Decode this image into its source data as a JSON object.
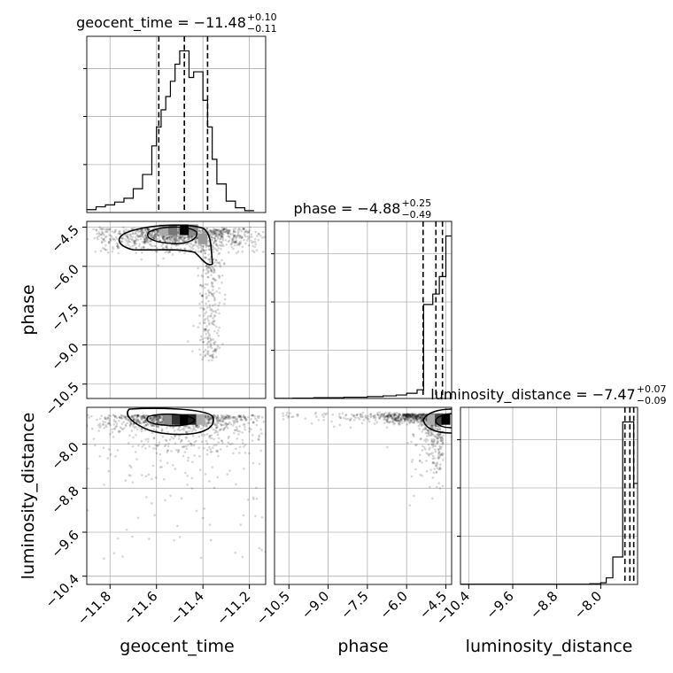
{
  "chart_data": {
    "type": "corner",
    "parameters": [
      "geocent_time",
      "phase",
      "luminosity_distance"
    ],
    "axis_labels": {
      "geocent_time": "geocent_time",
      "phase": "phase",
      "luminosity_distance": "luminosity_distance"
    },
    "titles": [
      {
        "param": "geocent_time",
        "prefix": "geocent_time = ",
        "median": "−11.48",
        "plus": "+0.10",
        "minus": "−0.11"
      },
      {
        "param": "phase",
        "prefix": "phase = ",
        "median": "−4.88",
        "plus": "+0.25",
        "minus": "−0.49"
      },
      {
        "param": "luminosity_distance",
        "prefix": "luminosity_distance = ",
        "median": "−7.47",
        "plus": "+0.07",
        "minus": "−0.09"
      }
    ],
    "ranges": {
      "geocent_time": [
        -11.9,
        -11.13
      ],
      "phase": [
        -11.05,
        -4.28
      ],
      "luminosity_distance": [
        -10.55,
        -7.33
      ]
    },
    "ticks": {
      "geocent_time": {
        "values": [
          -11.8,
          -11.6,
          -11.4,
          -11.2
        ],
        "labels": [
          "−11.8",
          "−11.6",
          "−11.4",
          "−11.2"
        ]
      },
      "phase": {
        "values": [
          -10.5,
          -9.0,
          -7.5,
          -6.0,
          -4.5
        ],
        "labels": [
          "−10.5",
          "−9.0",
          "−7.5",
          "−6.0",
          "−4.5"
        ]
      },
      "luminosity_distance": {
        "values": [
          -10.4,
          -9.6,
          -8.8,
          -8.0
        ],
        "labels": [
          "−10.4",
          "−9.6",
          "−8.8",
          "−8.0"
        ]
      }
    },
    "quantiles": {
      "geocent_time": [
        -11.59,
        -11.48,
        -11.38
      ],
      "phase": [
        -5.37,
        -4.88,
        -4.63
      ],
      "luminosity_distance": [
        -7.56,
        -7.47,
        -7.4
      ]
    },
    "histograms": {
      "geocent_time": {
        "edges": [
          -11.9,
          -11.86,
          -11.82,
          -11.78,
          -11.74,
          -11.7,
          -11.66,
          -11.62,
          -11.6,
          -11.58,
          -11.56,
          -11.54,
          -11.52,
          -11.5,
          -11.48,
          -11.46,
          -11.44,
          -11.42,
          -11.4,
          -11.38,
          -11.36,
          -11.34,
          -11.3,
          -11.26,
          -11.22,
          -11.18
        ],
        "counts": [
          0.03,
          0.06,
          0.08,
          0.11,
          0.15,
          0.25,
          0.4,
          0.7,
          0.9,
          1.08,
          1.22,
          1.38,
          1.56,
          1.7,
          1.7,
          1.42,
          1.48,
          1.48,
          1.18,
          0.9,
          0.56,
          0.3,
          0.12,
          0.05,
          0.02
        ]
      },
      "phase": {
        "edges": [
          -11.05,
          -10.35,
          -9.55,
          -8.4,
          -7.5,
          -6.9,
          -6.4,
          -6.0,
          -5.6,
          -5.35,
          -5.0,
          -4.75,
          -4.5,
          -4.3
        ],
        "counts": [
          0.003,
          0.007,
          0.013,
          0.022,
          0.032,
          0.045,
          0.06,
          0.09,
          0.15,
          1.62,
          1.8,
          2.1,
          2.8
        ]
      },
      "luminosity_distance": {
        "edges": [
          -10.55,
          -8.2,
          -8.0,
          -7.9,
          -7.78,
          -7.6,
          -7.56,
          -7.52,
          -7.47,
          -7.44,
          -7.4,
          -7.33
        ],
        "counts": [
          0.002,
          0.006,
          0.015,
          0.06,
          0.25,
          1.48,
          1.48,
          1.48,
          1.48,
          1.48,
          0.92
        ]
      }
    },
    "density_peaks": {
      "phase_vs_geocent_time": {
        "x": -11.48,
        "y": -4.6
      },
      "luminosity_distance_vs_geocent_time": {
        "x": -11.48,
        "y": -7.55
      },
      "luminosity_distance_vs_phase": {
        "x": -4.5,
        "y": -7.55
      }
    }
  }
}
